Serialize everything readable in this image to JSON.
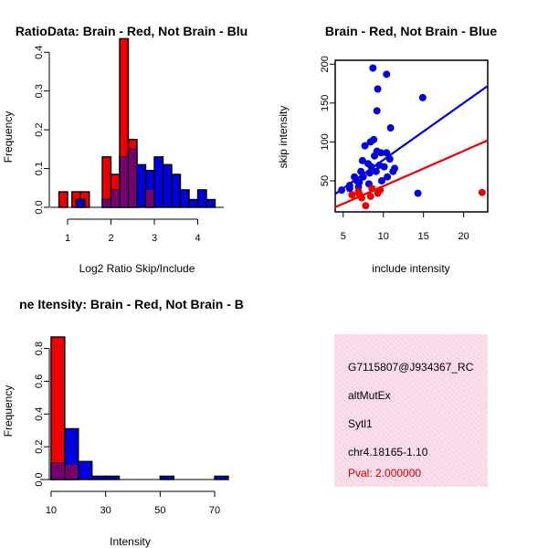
{
  "chart_data": [
    {
      "type": "bar",
      "title": "RatioData: Brain - Red, Not Brain - Blu",
      "xlabel": "Log2 Ratio Skip/Include",
      "ylabel": "Frequency",
      "xlim": [
        0.6,
        4.6
      ],
      "ylim": [
        0,
        0.45
      ],
      "xticks": [
        "1",
        "2",
        "3",
        "4"
      ],
      "yticks": [
        "0.0",
        "0.1",
        "0.2",
        "0.3",
        "0.4"
      ],
      "bin_width": 0.2,
      "series": [
        {
          "name": "Brain",
          "color": "#ee0000",
          "bins": [
            [
              0.8,
              0.04
            ],
            [
              1.1,
              0.04
            ],
            [
              1.3,
              0.04
            ],
            [
              1.8,
              0.13
            ],
            [
              2.0,
              0.085
            ],
            [
              2.2,
              0.435
            ],
            [
              2.4,
              0.175
            ],
            [
              2.8,
              0.045
            ]
          ]
        },
        {
          "name": "Not Brain",
          "color": "#0000dd",
          "bins": [
            [
              1.2,
              0.02
            ],
            [
              1.8,
              0.02
            ],
            [
              2.0,
              0.045
            ],
            [
              2.2,
              0.13
            ],
            [
              2.4,
              0.15
            ],
            [
              2.6,
              0.11
            ],
            [
              2.8,
              0.095
            ],
            [
              3.0,
              0.13
            ],
            [
              3.2,
              0.11
            ],
            [
              3.4,
              0.085
            ],
            [
              3.6,
              0.045
            ],
            [
              3.8,
              0.02
            ],
            [
              4.0,
              0.045
            ],
            [
              4.2,
              0.02
            ]
          ]
        }
      ]
    },
    {
      "type": "scatter",
      "title": "Brain - Red, Not Brain - Blue",
      "xlabel": "include intensity",
      "ylabel": "skip intensity",
      "xlim": [
        4,
        23
      ],
      "ylim": [
        10,
        205
      ],
      "xticks": [
        "5",
        "10",
        "15",
        "20"
      ],
      "yticks": [
        "50",
        "100",
        "150",
        "200"
      ],
      "series": [
        {
          "name": "Not Brain",
          "color": "#0000dd",
          "points": [
            [
              8.7,
              195
            ],
            [
              10.4,
              187
            ],
            [
              9.3,
              168
            ],
            [
              14.9,
              157
            ],
            [
              9.2,
              140
            ],
            [
              10.9,
              118
            ],
            [
              8.4,
              100
            ],
            [
              8.8,
              103
            ],
            [
              7.7,
              95
            ],
            [
              9.2,
              88
            ],
            [
              9.7,
              86
            ],
            [
              10.4,
              86
            ],
            [
              8.9,
              82
            ],
            [
              10.8,
              78
            ],
            [
              7.4,
              76
            ],
            [
              8.1,
              72
            ],
            [
              9.5,
              70
            ],
            [
              10.1,
              68
            ],
            [
              11.2,
              62
            ],
            [
              9.1,
              62
            ],
            [
              8.3,
              60
            ],
            [
              7.5,
              55
            ],
            [
              6.4,
              55
            ],
            [
              10.5,
              55
            ],
            [
              9.8,
              50
            ],
            [
              7.0,
              48
            ],
            [
              8.2,
              46
            ],
            [
              5.8,
              44
            ],
            [
              6.9,
              42
            ],
            [
              4.8,
              38
            ],
            [
              5.8,
              40
            ],
            [
              14.3,
              34
            ],
            [
              11.4,
              66
            ],
            [
              8.5,
              68
            ],
            [
              7.2,
              62
            ],
            [
              6.7,
              50
            ]
          ]
        },
        {
          "name": "Brain",
          "color": "#ee0000",
          "points": [
            [
              22.3,
              35
            ],
            [
              7.8,
              18
            ],
            [
              7.0,
              33
            ],
            [
              8.4,
              30
            ],
            [
              6.1,
              32
            ],
            [
              7.3,
              28
            ],
            [
              8.6,
              40
            ],
            [
              9.6,
              38
            ],
            [
              6.9,
              36
            ],
            [
              9.3,
              34
            ]
          ]
        }
      ],
      "fit_lines": [
        {
          "name": "Not Brain",
          "color": "#0000dd",
          "from": [
            4,
            33
          ],
          "to": [
            23,
            172
          ]
        },
        {
          "name": "Brain",
          "color": "#ee0000",
          "from": [
            4,
            16
          ],
          "to": [
            23,
            102
          ]
        }
      ]
    },
    {
      "type": "bar",
      "title": "ne Itensity: Brain - Red, Not Brain - B",
      "xlabel": "Intensity",
      "ylabel": "Frequency",
      "xlim": [
        6,
        72
      ],
      "ylim": [
        0,
        0.87
      ],
      "xticks": [
        "10",
        "30",
        "50",
        "70"
      ],
      "yticks": [
        "0.0",
        "0.2",
        "0.4",
        "0.6",
        "0.8"
      ],
      "bin_width": 5,
      "series": [
        {
          "name": "Brain",
          "color": "#ee0000",
          "bins": [
            [
              10,
              0.87
            ],
            [
              15,
              0.09
            ]
          ]
        },
        {
          "name": "Not Brain",
          "color": "#0000dd",
          "bins": [
            [
              10,
              0.1
            ],
            [
              15,
              0.31
            ],
            [
              20,
              0.11
            ],
            [
              25,
              0.02
            ],
            [
              30,
              0.02
            ],
            [
              50,
              0.02
            ],
            [
              70,
              0.02
            ]
          ]
        }
      ]
    }
  ],
  "info_panel": {
    "probe_id": "G7115807@J934367_RC",
    "event_type": "altMutEx",
    "gene": "Sytl1",
    "location": "chr4.18165-1.10",
    "pval": "Pval: 2.000000"
  }
}
